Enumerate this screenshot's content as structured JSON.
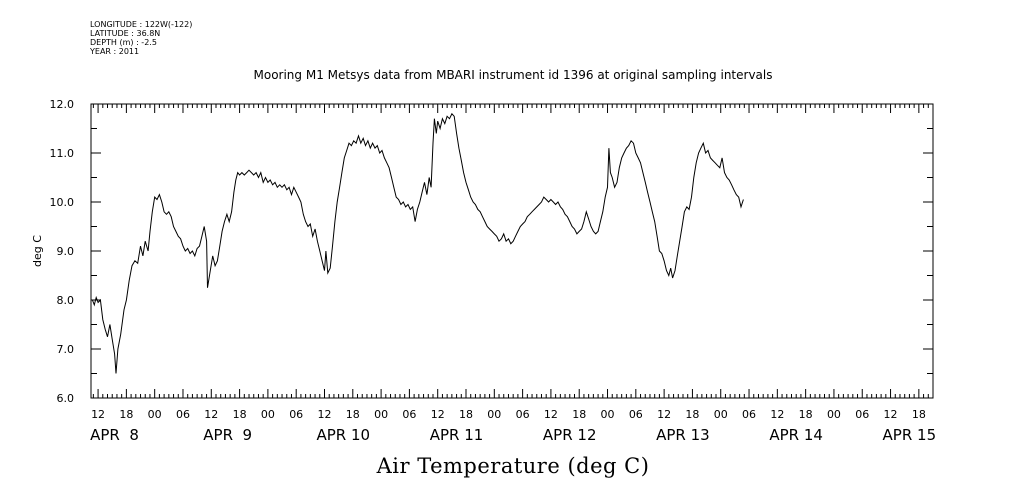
{
  "meta": {
    "longitude": "LONGITUDE : 122W(-122)",
    "latitude": "LATITUDE : 36.8N",
    "depth": "DEPTH (m) : -2.5",
    "year": "YEAR : 2011"
  },
  "chart_data": {
    "type": "line",
    "title": "Mooring M1 Metsys data from MBARI instrument id 1396 at original sampling intervals",
    "xlabel": "Air Temperature (deg C)",
    "ylabel": "deg C",
    "ylim": [
      6.0,
      12.0
    ],
    "y_ticks": [
      "6.0",
      "7.0",
      "8.0",
      "9.0",
      "10.0",
      "11.0",
      "12.0"
    ],
    "xlim": [
      10.5,
      189
    ],
    "x_ticks": [
      {
        "h": 12,
        "label": "12"
      },
      {
        "h": 18,
        "label": "18"
      },
      {
        "h": 24,
        "label": "00"
      },
      {
        "h": 30,
        "label": "06"
      },
      {
        "h": 36,
        "label": "12"
      },
      {
        "h": 42,
        "label": "18"
      },
      {
        "h": 48,
        "label": "00"
      },
      {
        "h": 54,
        "label": "06"
      },
      {
        "h": 60,
        "label": "12"
      },
      {
        "h": 66,
        "label": "18"
      },
      {
        "h": 72,
        "label": "00"
      },
      {
        "h": 78,
        "label": "06"
      },
      {
        "h": 84,
        "label": "12"
      },
      {
        "h": 90,
        "label": "18"
      },
      {
        "h": 96,
        "label": "00"
      },
      {
        "h": 102,
        "label": "06"
      },
      {
        "h": 108,
        "label": "12"
      },
      {
        "h": 114,
        "label": "18"
      },
      {
        "h": 120,
        "label": "00"
      },
      {
        "h": 126,
        "label": "06"
      },
      {
        "h": 132,
        "label": "12"
      },
      {
        "h": 138,
        "label": "18"
      },
      {
        "h": 144,
        "label": "00"
      },
      {
        "h": 150,
        "label": "06"
      },
      {
        "h": 156,
        "label": "12"
      },
      {
        "h": 162,
        "label": "18"
      },
      {
        "h": 168,
        "label": "00"
      },
      {
        "h": 174,
        "label": "06"
      },
      {
        "h": 180,
        "label": "12"
      },
      {
        "h": 186,
        "label": "18"
      }
    ],
    "day_labels": [
      {
        "h": 12,
        "label": "APR  8"
      },
      {
        "h": 36,
        "label": "APR  9"
      },
      {
        "h": 60,
        "label": "APR 10"
      },
      {
        "h": 84,
        "label": "APR 11"
      },
      {
        "h": 108,
        "label": "APR 12"
      },
      {
        "h": 132,
        "label": "APR 13"
      },
      {
        "h": 156,
        "label": "APR 14"
      },
      {
        "h": 180,
        "label": "APR 15"
      }
    ],
    "grid": false,
    "series": [
      {
        "points": [
          [
            10.8,
            8.0
          ],
          [
            11.2,
            7.9
          ],
          [
            11.6,
            8.05
          ],
          [
            12.0,
            7.95
          ],
          [
            12.5,
            8.0
          ],
          [
            13.0,
            7.6
          ],
          [
            13.5,
            7.4
          ],
          [
            14.0,
            7.25
          ],
          [
            14.5,
            7.5
          ],
          [
            15.0,
            7.2
          ],
          [
            15.5,
            6.9
          ],
          [
            15.8,
            6.5
          ],
          [
            16.2,
            7.0
          ],
          [
            16.8,
            7.3
          ],
          [
            17.5,
            7.8
          ],
          [
            18.0,
            8.0
          ],
          [
            18.6,
            8.4
          ],
          [
            19.2,
            8.7
          ],
          [
            19.8,
            8.8
          ],
          [
            20.4,
            8.75
          ],
          [
            21.0,
            9.1
          ],
          [
            21.5,
            8.9
          ],
          [
            22.0,
            9.2
          ],
          [
            22.6,
            9.0
          ],
          [
            23.0,
            9.4
          ],
          [
            23.5,
            9.8
          ],
          [
            24.0,
            10.1
          ],
          [
            24.5,
            10.05
          ],
          [
            25.0,
            10.15
          ],
          [
            25.5,
            10.0
          ],
          [
            26.0,
            9.8
          ],
          [
            26.5,
            9.75
          ],
          [
            27.0,
            9.8
          ],
          [
            27.5,
            9.7
          ],
          [
            28.0,
            9.5
          ],
          [
            28.5,
            9.4
          ],
          [
            29.0,
            9.3
          ],
          [
            29.5,
            9.25
          ],
          [
            30.0,
            9.1
          ],
          [
            30.5,
            9.0
          ],
          [
            31.0,
            9.05
          ],
          [
            31.5,
            8.95
          ],
          [
            32.0,
            9.0
          ],
          [
            32.5,
            8.9
          ],
          [
            33.0,
            9.05
          ],
          [
            33.5,
            9.1
          ],
          [
            34.0,
            9.3
          ],
          [
            34.5,
            9.5
          ],
          [
            35.0,
            9.2
          ],
          [
            35.2,
            8.25
          ],
          [
            35.8,
            8.6
          ],
          [
            36.3,
            8.9
          ],
          [
            36.8,
            8.7
          ],
          [
            37.3,
            8.8
          ],
          [
            37.8,
            9.1
          ],
          [
            38.3,
            9.4
          ],
          [
            38.8,
            9.6
          ],
          [
            39.3,
            9.75
          ],
          [
            39.8,
            9.6
          ],
          [
            40.3,
            9.8
          ],
          [
            40.8,
            10.2
          ],
          [
            41.2,
            10.45
          ],
          [
            41.6,
            10.6
          ],
          [
            42.0,
            10.55
          ],
          [
            42.5,
            10.6
          ],
          [
            43.0,
            10.55
          ],
          [
            43.5,
            10.6
          ],
          [
            44.0,
            10.65
          ],
          [
            44.5,
            10.6
          ],
          [
            45.0,
            10.55
          ],
          [
            45.5,
            10.6
          ],
          [
            46.0,
            10.5
          ],
          [
            46.5,
            10.6
          ],
          [
            47.0,
            10.4
          ],
          [
            47.5,
            10.5
          ],
          [
            48.0,
            10.4
          ],
          [
            48.5,
            10.45
          ],
          [
            49.0,
            10.35
          ],
          [
            49.5,
            10.4
          ],
          [
            50.0,
            10.3
          ],
          [
            50.5,
            10.35
          ],
          [
            51.0,
            10.3
          ],
          [
            51.5,
            10.35
          ],
          [
            52.0,
            10.25
          ],
          [
            52.5,
            10.3
          ],
          [
            53.0,
            10.15
          ],
          [
            53.5,
            10.3
          ],
          [
            54.0,
            10.2
          ],
          [
            54.5,
            10.1
          ],
          [
            55.0,
            10.0
          ],
          [
            55.5,
            9.75
          ],
          [
            56.0,
            9.6
          ],
          [
            56.5,
            9.5
          ],
          [
            57.0,
            9.55
          ],
          [
            57.5,
            9.3
          ],
          [
            58.0,
            9.45
          ],
          [
            58.5,
            9.2
          ],
          [
            59.0,
            9.0
          ],
          [
            59.5,
            8.8
          ],
          [
            60.0,
            8.6
          ],
          [
            60.3,
            9.0
          ],
          [
            60.7,
            8.55
          ],
          [
            61.2,
            8.65
          ],
          [
            61.7,
            9.1
          ],
          [
            62.2,
            9.6
          ],
          [
            62.7,
            10.0
          ],
          [
            63.2,
            10.3
          ],
          [
            63.7,
            10.6
          ],
          [
            64.2,
            10.9
          ],
          [
            64.7,
            11.05
          ],
          [
            65.2,
            11.2
          ],
          [
            65.7,
            11.15
          ],
          [
            66.2,
            11.25
          ],
          [
            66.7,
            11.2
          ],
          [
            67.2,
            11.35
          ],
          [
            67.7,
            11.2
          ],
          [
            68.2,
            11.3
          ],
          [
            68.7,
            11.15
          ],
          [
            69.2,
            11.25
          ],
          [
            69.7,
            11.1
          ],
          [
            70.2,
            11.2
          ],
          [
            70.7,
            11.1
          ],
          [
            71.2,
            11.15
          ],
          [
            71.7,
            11.0
          ],
          [
            72.2,
            11.05
          ],
          [
            72.7,
            10.9
          ],
          [
            73.2,
            10.8
          ],
          [
            73.7,
            10.7
          ],
          [
            74.2,
            10.5
          ],
          [
            74.7,
            10.3
          ],
          [
            75.2,
            10.1
          ],
          [
            75.7,
            10.05
          ],
          [
            76.2,
            9.95
          ],
          [
            76.7,
            10.0
          ],
          [
            77.2,
            9.9
          ],
          [
            77.7,
            9.95
          ],
          [
            78.2,
            9.85
          ],
          [
            78.7,
            9.9
          ],
          [
            79.2,
            9.6
          ],
          [
            79.7,
            9.85
          ],
          [
            80.2,
            10.0
          ],
          [
            80.7,
            10.2
          ],
          [
            81.2,
            10.4
          ],
          [
            81.7,
            10.15
          ],
          [
            82.2,
            10.5
          ],
          [
            82.6,
            10.3
          ],
          [
            83.0,
            11.2
          ],
          [
            83.3,
            11.7
          ],
          [
            83.7,
            11.4
          ],
          [
            84.0,
            11.65
          ],
          [
            84.5,
            11.5
          ],
          [
            85.0,
            11.7
          ],
          [
            85.5,
            11.6
          ],
          [
            86.0,
            11.75
          ],
          [
            86.5,
            11.7
          ],
          [
            87.0,
            11.8
          ],
          [
            87.5,
            11.75
          ],
          [
            88.0,
            11.4
          ],
          [
            88.5,
            11.1
          ],
          [
            89.0,
            10.85
          ],
          [
            89.5,
            10.6
          ],
          [
            90.0,
            10.4
          ],
          [
            90.5,
            10.25
          ],
          [
            91.0,
            10.1
          ],
          [
            91.5,
            10.0
          ],
          [
            92.0,
            9.95
          ],
          [
            92.5,
            9.85
          ],
          [
            93.0,
            9.8
          ],
          [
            93.5,
            9.7
          ],
          [
            94.0,
            9.6
          ],
          [
            94.5,
            9.5
          ],
          [
            95.0,
            9.45
          ],
          [
            95.5,
            9.4
          ],
          [
            96.0,
            9.35
          ],
          [
            96.5,
            9.3
          ],
          [
            97.0,
            9.2
          ],
          [
            97.5,
            9.25
          ],
          [
            98.0,
            9.35
          ],
          [
            98.5,
            9.2
          ],
          [
            99.0,
            9.25
          ],
          [
            99.5,
            9.15
          ],
          [
            100.0,
            9.2
          ],
          [
            100.5,
            9.3
          ],
          [
            101.0,
            9.4
          ],
          [
            101.5,
            9.5
          ],
          [
            102.0,
            9.55
          ],
          [
            102.5,
            9.6
          ],
          [
            103.0,
            9.7
          ],
          [
            103.5,
            9.75
          ],
          [
            104.0,
            9.8
          ],
          [
            104.5,
            9.85
          ],
          [
            105.0,
            9.9
          ],
          [
            105.5,
            9.95
          ],
          [
            106.0,
            10.0
          ],
          [
            106.5,
            10.1
          ],
          [
            107.0,
            10.05
          ],
          [
            107.5,
            10.0
          ],
          [
            108.0,
            10.05
          ],
          [
            108.5,
            10.0
          ],
          [
            109.0,
            9.95
          ],
          [
            109.5,
            10.0
          ],
          [
            110.0,
            9.9
          ],
          [
            110.5,
            9.85
          ],
          [
            111.0,
            9.75
          ],
          [
            111.5,
            9.7
          ],
          [
            112.0,
            9.6
          ],
          [
            112.5,
            9.5
          ],
          [
            113.0,
            9.45
          ],
          [
            113.5,
            9.35
          ],
          [
            114.0,
            9.4
          ],
          [
            114.5,
            9.45
          ],
          [
            115.0,
            9.6
          ],
          [
            115.5,
            9.8
          ],
          [
            116.0,
            9.65
          ],
          [
            116.5,
            9.5
          ],
          [
            117.0,
            9.4
          ],
          [
            117.5,
            9.35
          ],
          [
            118.0,
            9.4
          ],
          [
            118.5,
            9.6
          ],
          [
            119.0,
            9.8
          ],
          [
            119.5,
            10.1
          ],
          [
            120.0,
            10.3
          ],
          [
            120.3,
            11.1
          ],
          [
            120.6,
            10.6
          ],
          [
            121.0,
            10.5
          ],
          [
            121.5,
            10.3
          ],
          [
            122.0,
            10.4
          ],
          [
            122.5,
            10.7
          ],
          [
            123.0,
            10.9
          ],
          [
            123.5,
            11.0
          ],
          [
            124.0,
            11.1
          ],
          [
            124.5,
            11.15
          ],
          [
            125.0,
            11.25
          ],
          [
            125.5,
            11.2
          ],
          [
            126.0,
            11.0
          ],
          [
            126.5,
            10.9
          ],
          [
            127.0,
            10.8
          ],
          [
            127.5,
            10.6
          ],
          [
            128.0,
            10.4
          ],
          [
            128.5,
            10.2
          ],
          [
            129.0,
            10.0
          ],
          [
            129.5,
            9.8
          ],
          [
            130.0,
            9.6
          ],
          [
            130.5,
            9.3
          ],
          [
            131.0,
            9.0
          ],
          [
            131.5,
            8.95
          ],
          [
            132.0,
            8.8
          ],
          [
            132.5,
            8.6
          ],
          [
            133.0,
            8.5
          ],
          [
            133.4,
            8.65
          ],
          [
            133.8,
            8.45
          ],
          [
            134.3,
            8.6
          ],
          [
            134.8,
            8.9
          ],
          [
            135.3,
            9.2
          ],
          [
            135.8,
            9.5
          ],
          [
            136.3,
            9.8
          ],
          [
            136.8,
            9.9
          ],
          [
            137.3,
            9.85
          ],
          [
            137.8,
            10.1
          ],
          [
            138.3,
            10.5
          ],
          [
            138.8,
            10.8
          ],
          [
            139.3,
            11.0
          ],
          [
            139.8,
            11.1
          ],
          [
            140.3,
            11.2
          ],
          [
            140.8,
            11.0
          ],
          [
            141.3,
            11.05
          ],
          [
            141.8,
            10.9
          ],
          [
            142.3,
            10.85
          ],
          [
            142.8,
            10.8
          ],
          [
            143.3,
            10.75
          ],
          [
            143.8,
            10.7
          ],
          [
            144.3,
            10.9
          ],
          [
            144.8,
            10.6
          ],
          [
            145.3,
            10.5
          ],
          [
            145.8,
            10.45
          ],
          [
            146.3,
            10.35
          ],
          [
            146.8,
            10.25
          ],
          [
            147.3,
            10.15
          ],
          [
            147.8,
            10.1
          ],
          [
            148.3,
            9.9
          ],
          [
            148.8,
            10.05
          ]
        ]
      }
    ]
  }
}
